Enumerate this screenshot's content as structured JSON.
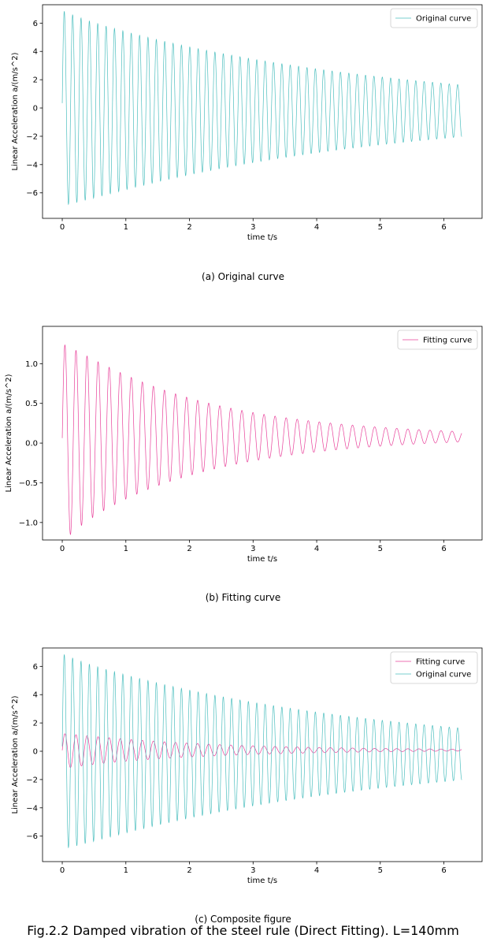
{
  "colors": {
    "original": "#4dbfbf",
    "fitting": "#e8409a"
  },
  "captions": {
    "a": "(a) Original curve",
    "b": "(b) Fitting curve",
    "c": "(c) Composite figure"
  },
  "figure_title": "Fig.2.2 Damped vibration of the steel rule (Direct Fitting). L=140mm",
  "chart_data": [
    {
      "type": "line",
      "xlabel": "time t/s",
      "ylabel": "Linear Acceleration a/(m/s^2)",
      "xlim": [
        -0.31,
        6.6
      ],
      "ylim": [
        -7.8,
        7.3
      ],
      "xticks": [
        0,
        1,
        2,
        3,
        4,
        5,
        6
      ],
      "yticks": [
        -6,
        -4,
        -2,
        0,
        2,
        4,
        6
      ],
      "ytick_labels": [
        "−6",
        "−4",
        "−2",
        "0",
        "2",
        "4",
        "6"
      ],
      "legend": "top-right",
      "grid": false,
      "series": [
        {
          "name": "Original curve",
          "model": {
            "amp": 6.9,
            "decay": 0.211,
            "freq": 7.6,
            "offset": -0.2,
            "t_end": 6.28
          }
        }
      ]
    },
    {
      "type": "line",
      "xlabel": "time t/s",
      "ylabel": "Linear Acceleration a/(m/s^2)",
      "xlim": [
        -0.31,
        6.6
      ],
      "ylim": [
        -1.22,
        1.47
      ],
      "xticks": [
        0,
        1,
        2,
        3,
        4,
        5,
        6
      ],
      "yticks": [
        -1.0,
        -0.5,
        0.0,
        0.5,
        1.0
      ],
      "ytick_labels": [
        "−1.0",
        "−0.5",
        "0.0",
        "0.5",
        "1.0"
      ],
      "legend": "top-right",
      "grid": false,
      "series": [
        {
          "name": "Fitting curve",
          "model": {
            "amp": 1.25,
            "decay": 0.47,
            "freq": 5.75,
            "offset": 0.08,
            "t_end": 6.28
          }
        }
      ]
    },
    {
      "type": "line",
      "xlabel": "time t/s",
      "ylabel": "Linear Acceleration a/(m/s^2)",
      "xlim": [
        -0.31,
        6.6
      ],
      "ylim": [
        -7.8,
        7.3
      ],
      "xticks": [
        0,
        1,
        2,
        3,
        4,
        5,
        6
      ],
      "yticks": [
        -6,
        -4,
        -2,
        0,
        2,
        4,
        6
      ],
      "ytick_labels": [
        "−6",
        "−4",
        "−2",
        "0",
        "2",
        "4",
        "6"
      ],
      "legend": "top-right",
      "grid": false,
      "series": [
        {
          "name": "Fitting curve",
          "model": {
            "amp": 1.25,
            "decay": 0.47,
            "freq": 5.75,
            "offset": 0.08,
            "t_end": 6.28
          }
        },
        {
          "name": "Original curve",
          "model": {
            "amp": 6.9,
            "decay": 0.211,
            "freq": 7.6,
            "offset": -0.2,
            "t_end": 6.28
          }
        }
      ]
    }
  ]
}
